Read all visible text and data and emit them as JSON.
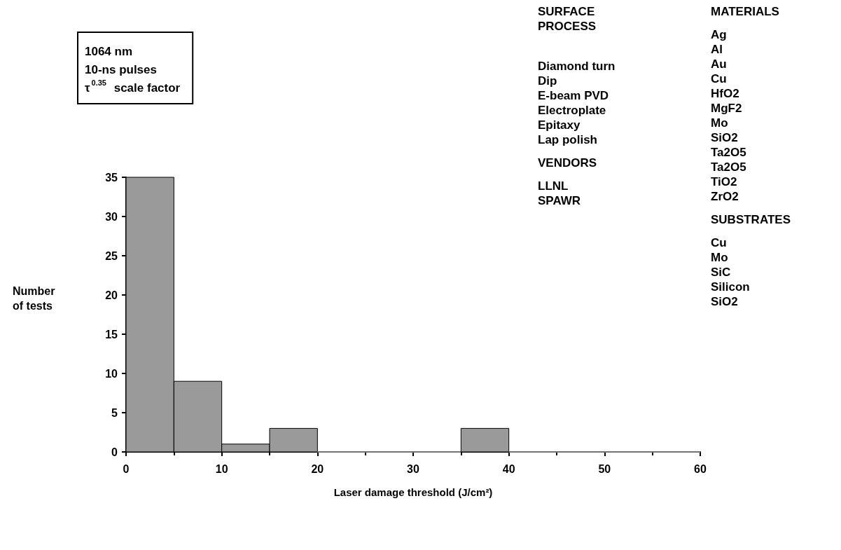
{
  "chart_data": {
    "type": "histogram",
    "bins": [
      0,
      5,
      10,
      15,
      20,
      25,
      30,
      35,
      40,
      45,
      50,
      55,
      60
    ],
    "values": [
      35,
      9,
      1,
      3,
      0,
      0,
      0,
      3,
      0,
      0,
      0,
      0
    ],
    "color": "#9a9a9a",
    "xlabel": "Laser damage threshold (J/cm²)",
    "ylabel": "Number\nof tests",
    "xlim": [
      0,
      60
    ],
    "xticks": [
      0,
      10,
      20,
      30,
      40,
      50,
      60
    ],
    "ylim": [
      0,
      35
    ],
    "yticks": [
      0,
      5,
      10,
      15,
      20,
      25,
      30,
      35
    ],
    "grid": false,
    "annotations": [
      "1064 nm\n10-ns pulses\nτ$^{0.35}$ scale factor",
      "SURFACE\nPROCESS\n\n\n\nDiamond turn\nDip\nE-beam PVD\nElectroplate\nEpitaxy\nLap polish\n\nVENDORS\n\nLLNL\nSPAWR",
      "MATERIALS\n\nAg\nAl\nAu\nCu\nHfO2\nMgF2\nMo\nSiO2\nTa2O5\nTa2O5\nTiO2\nZrO2\n\nSUBSTRATES\n\nCu\nMo\nSiC\nSilicon\nSiO2"
    ]
  }
}
